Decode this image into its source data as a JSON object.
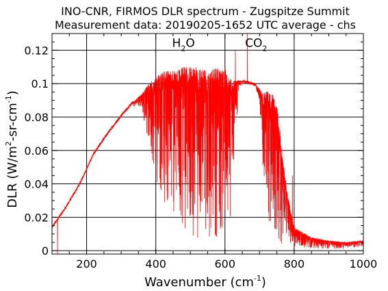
{
  "chart_data": {
    "type": "line",
    "title": "INO-CNR, FIRMOS DLR spectrum - Zugspitze Summit",
    "subtitle": "Measurement data: 20190205-1652 UTC average - chs",
    "xlabel": {
      "main": "Wavenumber (cm",
      "sup": "-1",
      "close": ")"
    },
    "ylabel": {
      "main": "DLR (W/m",
      "sup1": "2",
      "mid": "-sr-cm",
      "sup2": "-1",
      "close": ")"
    },
    "xlim": [
      100,
      1000
    ],
    "ylim": [
      -0.002,
      0.13
    ],
    "xticks": [
      200,
      400,
      600,
      800,
      1000
    ],
    "xtick_labels": [
      "200",
      "400",
      "600",
      "800",
      "1000"
    ],
    "yticks": [
      0,
      0.02,
      0.04,
      0.06,
      0.08,
      0.1,
      0.12
    ],
    "ytick_labels": [
      "0",
      "0.02",
      "0.04",
      "0.06",
      "0.08",
      "0.1",
      "0.12"
    ],
    "grid": true,
    "line_color": "#ff0000",
    "annotations": [
      {
        "main": "H",
        "sub": "2",
        "tail": "O",
        "x": 480,
        "y": 0.122
      },
      {
        "main": "CO",
        "sub": "2",
        "tail": "",
        "x": 690,
        "y": 0.122
      }
    ],
    "envelope": {
      "x": [
        100,
        140,
        180,
        200,
        220,
        260,
        300,
        330,
        360,
        380,
        400,
        420,
        450,
        480,
        510,
        540,
        570,
        600,
        620,
        640,
        660,
        680,
        690,
        700,
        710,
        720,
        730,
        740,
        750,
        760,
        770,
        780,
        790,
        800,
        850,
        900,
        950,
        1000
      ],
      "upper": [
        0.014,
        0.026,
        0.04,
        0.049,
        0.058,
        0.07,
        0.081,
        0.088,
        0.094,
        0.1,
        0.104,
        0.107,
        0.109,
        0.11,
        0.11,
        0.11,
        0.11,
        0.109,
        0.102,
        0.102,
        0.101,
        0.1,
        0.099,
        0.097,
        0.094,
        0.096,
        0.094,
        0.093,
        0.088,
        0.07,
        0.05,
        0.035,
        0.024,
        0.014,
        0.008,
        0.006,
        0.005,
        0.006
      ],
      "lower": [
        0.014,
        0.026,
        0.04,
        0.049,
        0.058,
        0.07,
        0.08,
        0.086,
        0.085,
        0.06,
        0.04,
        0.028,
        0.016,
        0.008,
        0.005,
        0.004,
        0.005,
        0.006,
        0.02,
        0.098,
        0.099,
        0.098,
        0.096,
        0.09,
        0.04,
        0.02,
        0.01,
        0.005,
        0.003,
        0.002,
        0.002,
        0.002,
        0.002,
        0.002,
        0.001,
        0.001,
        0.001,
        0.002
      ],
      "spikes": [
        {
          "x": 116,
          "y": -0.002
        },
        {
          "x": 665,
          "y": 0.13
        },
        {
          "x": 630,
          "y": 0.12
        },
        {
          "x": 795,
          "y": 0.045
        }
      ]
    }
  }
}
